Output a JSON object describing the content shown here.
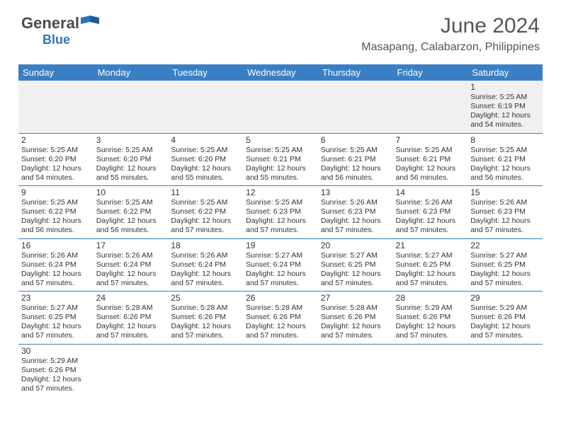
{
  "logo": {
    "text1": "General",
    "text2": "Blue"
  },
  "title": "June 2024",
  "location": "Masapang, Calabarzon, Philippines",
  "colors": {
    "header_bg": "#3a7fc4",
    "header_text": "#ffffff",
    "text": "#333333",
    "border": "#3a7fc4",
    "empty_bg": "#f0f0f0",
    "logo_blue": "#2e75b6"
  },
  "day_headers": [
    "Sunday",
    "Monday",
    "Tuesday",
    "Wednesday",
    "Thursday",
    "Friday",
    "Saturday"
  ],
  "weeks": [
    [
      null,
      null,
      null,
      null,
      null,
      null,
      {
        "d": "1",
        "sr": "5:25 AM",
        "ss": "6:19 PM",
        "dl": "12 hours and 54 minutes."
      }
    ],
    [
      {
        "d": "2",
        "sr": "5:25 AM",
        "ss": "6:20 PM",
        "dl": "12 hours and 54 minutes."
      },
      {
        "d": "3",
        "sr": "5:25 AM",
        "ss": "6:20 PM",
        "dl": "12 hours and 55 minutes."
      },
      {
        "d": "4",
        "sr": "5:25 AM",
        "ss": "6:20 PM",
        "dl": "12 hours and 55 minutes."
      },
      {
        "d": "5",
        "sr": "5:25 AM",
        "ss": "6:21 PM",
        "dl": "12 hours and 55 minutes."
      },
      {
        "d": "6",
        "sr": "5:25 AM",
        "ss": "6:21 PM",
        "dl": "12 hours and 56 minutes."
      },
      {
        "d": "7",
        "sr": "5:25 AM",
        "ss": "6:21 PM",
        "dl": "12 hours and 56 minutes."
      },
      {
        "d": "8",
        "sr": "5:25 AM",
        "ss": "6:21 PM",
        "dl": "12 hours and 56 minutes."
      }
    ],
    [
      {
        "d": "9",
        "sr": "5:25 AM",
        "ss": "6:22 PM",
        "dl": "12 hours and 56 minutes."
      },
      {
        "d": "10",
        "sr": "5:25 AM",
        "ss": "6:22 PM",
        "dl": "12 hours and 56 minutes."
      },
      {
        "d": "11",
        "sr": "5:25 AM",
        "ss": "6:22 PM",
        "dl": "12 hours and 57 minutes."
      },
      {
        "d": "12",
        "sr": "5:25 AM",
        "ss": "6:23 PM",
        "dl": "12 hours and 57 minutes."
      },
      {
        "d": "13",
        "sr": "5:26 AM",
        "ss": "6:23 PM",
        "dl": "12 hours and 57 minutes."
      },
      {
        "d": "14",
        "sr": "5:26 AM",
        "ss": "6:23 PM",
        "dl": "12 hours and 57 minutes."
      },
      {
        "d": "15",
        "sr": "5:26 AM",
        "ss": "6:23 PM",
        "dl": "12 hours and 57 minutes."
      }
    ],
    [
      {
        "d": "16",
        "sr": "5:26 AM",
        "ss": "6:24 PM",
        "dl": "12 hours and 57 minutes."
      },
      {
        "d": "17",
        "sr": "5:26 AM",
        "ss": "6:24 PM",
        "dl": "12 hours and 57 minutes."
      },
      {
        "d": "18",
        "sr": "5:26 AM",
        "ss": "6:24 PM",
        "dl": "12 hours and 57 minutes."
      },
      {
        "d": "19",
        "sr": "5:27 AM",
        "ss": "6:24 PM",
        "dl": "12 hours and 57 minutes."
      },
      {
        "d": "20",
        "sr": "5:27 AM",
        "ss": "6:25 PM",
        "dl": "12 hours and 57 minutes."
      },
      {
        "d": "21",
        "sr": "5:27 AM",
        "ss": "6:25 PM",
        "dl": "12 hours and 57 minutes."
      },
      {
        "d": "22",
        "sr": "5:27 AM",
        "ss": "6:25 PM",
        "dl": "12 hours and 57 minutes."
      }
    ],
    [
      {
        "d": "23",
        "sr": "5:27 AM",
        "ss": "6:25 PM",
        "dl": "12 hours and 57 minutes."
      },
      {
        "d": "24",
        "sr": "5:28 AM",
        "ss": "6:26 PM",
        "dl": "12 hours and 57 minutes."
      },
      {
        "d": "25",
        "sr": "5:28 AM",
        "ss": "6:26 PM",
        "dl": "12 hours and 57 minutes."
      },
      {
        "d": "26",
        "sr": "5:28 AM",
        "ss": "6:26 PM",
        "dl": "12 hours and 57 minutes."
      },
      {
        "d": "27",
        "sr": "5:28 AM",
        "ss": "6:26 PM",
        "dl": "12 hours and 57 minutes."
      },
      {
        "d": "28",
        "sr": "5:29 AM",
        "ss": "6:26 PM",
        "dl": "12 hours and 57 minutes."
      },
      {
        "d": "29",
        "sr": "5:29 AM",
        "ss": "6:26 PM",
        "dl": "12 hours and 57 minutes."
      }
    ],
    [
      {
        "d": "30",
        "sr": "5:29 AM",
        "ss": "6:26 PM",
        "dl": "12 hours and 57 minutes."
      },
      null,
      null,
      null,
      null,
      null,
      null
    ]
  ],
  "labels": {
    "sunrise": "Sunrise:",
    "sunset": "Sunset:",
    "daylight": "Daylight:"
  }
}
